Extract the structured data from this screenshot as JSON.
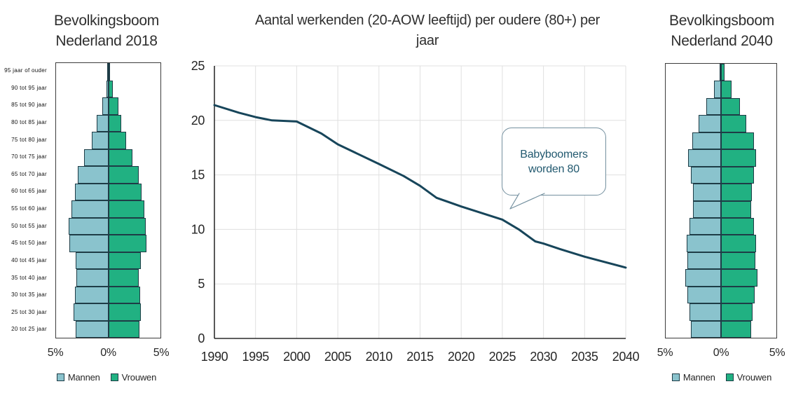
{
  "page": {
    "background": "#ffffff"
  },
  "colors": {
    "mannen": "#8ac3cd",
    "vrouwen": "#21b182",
    "bar_border": "#1e3c46",
    "plot_border": "#3c3c3c",
    "line": "#17455a",
    "grid": "#e0e0e0",
    "axis": "#000000",
    "annotation_border": "#74909f",
    "annotation_text": "#235a70",
    "text": "#2f2f2f"
  },
  "chart_data": [
    {
      "id": "pyramid-2018",
      "type": "bar",
      "subtype": "population-pyramid",
      "title": "Bevolkingsboom Nederland 2018",
      "title_lines": [
        "Bevolkingsboom",
        "Nederland 2018"
      ],
      "categories_top_to_bottom": [
        "95 jaar of ouder",
        "90 tot 95 jaar",
        "85 tot 90 jaar",
        "80 tot 85 jaar",
        "75 tot 80 jaar",
        "70 tot 75 jaar",
        "65 tot 70 jaar",
        "60 tot 65 jaar",
        "55 tot 60 jaar",
        "50 tot 55 jaar",
        "45 tot 50 jaar",
        "40 tot 45 jaar",
        "35 tot 40 jaar",
        "30 tot 35 jaar",
        "25 tot 30 jaar",
        "20 tot 25 jaar"
      ],
      "show_category_labels": true,
      "axis_labels": [
        "5%",
        "0%",
        "5%"
      ],
      "axis_max_pct": 5,
      "series": [
        {
          "name": "Mannen",
          "side": "left",
          "color": "#8ac3cd",
          "values_pct": [
            0.1,
            0.15,
            0.6,
            1.1,
            1.6,
            2.35,
            2.9,
            3.2,
            3.55,
            3.8,
            3.7,
            3.1,
            3.05,
            3.2,
            3.3,
            3.1
          ]
        },
        {
          "name": "Vrouwen",
          "side": "right",
          "color": "#21b182",
          "values_pct": [
            0.2,
            0.45,
            0.95,
            1.25,
            1.7,
            2.3,
            2.9,
            3.2,
            3.45,
            3.6,
            3.65,
            3.1,
            2.95,
            3.05,
            3.15,
            3.0
          ]
        }
      ]
    },
    {
      "id": "workers-per-elderly",
      "type": "line",
      "title": "Aantal werkenden (20-AOW leeftijd) per oudere (80+) per jaar",
      "title_lines": [
        "Aantal werkenden (20-AOW leeftijd) per oudere (80+) per",
        "jaar"
      ],
      "x": [
        1990,
        1993,
        1995,
        1997,
        2000,
        2003,
        2005,
        2010,
        2013,
        2015,
        2017,
        2020,
        2025,
        2027,
        2029,
        2030,
        2032,
        2035,
        2040
      ],
      "y": [
        21.4,
        20.7,
        20.3,
        20.0,
        19.9,
        18.8,
        17.8,
        16.0,
        14.9,
        14.0,
        12.9,
        12.1,
        10.9,
        10.0,
        8.9,
        8.7,
        8.2,
        7.5,
        6.5
      ],
      "xlim": [
        1990,
        2040
      ],
      "ylim": [
        0,
        25
      ],
      "xticks": [
        1990,
        1995,
        2000,
        2005,
        2010,
        2015,
        2020,
        2025,
        2030,
        2035,
        2040
      ],
      "yticks": [
        0,
        5,
        10,
        15,
        20,
        25
      ],
      "grid": true,
      "legend": "none",
      "line_color": "#17455a",
      "annotation": {
        "lines": [
          "Babyboomers",
          "worden 80"
        ],
        "arrow_target_year": 2026,
        "arrow_target_value": 11.9
      }
    },
    {
      "id": "pyramid-2040",
      "type": "bar",
      "subtype": "population-pyramid",
      "title": "Bevolkingsboom Nederland 2040",
      "title_lines": [
        "Bevolkingsboom",
        "Nederland 2040"
      ],
      "categories_top_to_bottom": [
        "95 jaar of ouder",
        "90 tot 95 jaar",
        "85 tot 90 jaar",
        "80 tot 85 jaar",
        "75 tot 80 jaar",
        "70 tot 75 jaar",
        "65 tot 70 jaar",
        "60 tot 65 jaar",
        "55 tot 60 jaar",
        "50 tot 55 jaar",
        "45 tot 50 jaar",
        "40 tot 45 jaar",
        "35 tot 40 jaar",
        "30 tot 35 jaar",
        "25 tot 30 jaar",
        "20 tot 25 jaar"
      ],
      "show_category_labels": false,
      "axis_labels": [
        "5%",
        "0%",
        "5%"
      ],
      "axis_max_pct": 5,
      "series": [
        {
          "name": "Mannen",
          "side": "left",
          "color": "#8ac3cd",
          "values_pct": [
            0.1,
            0.65,
            1.3,
            2.0,
            2.6,
            3.0,
            2.75,
            2.55,
            2.55,
            2.85,
            3.1,
            3.05,
            3.25,
            3.05,
            2.85,
            2.7
          ]
        },
        {
          "name": "Vrouwen",
          "side": "right",
          "color": "#21b182",
          "values_pct": [
            0.3,
            0.95,
            1.7,
            2.3,
            2.95,
            3.15,
            3.0,
            2.8,
            2.75,
            3.0,
            3.15,
            3.1,
            3.3,
            3.05,
            2.85,
            2.75
          ]
        }
      ]
    }
  ]
}
